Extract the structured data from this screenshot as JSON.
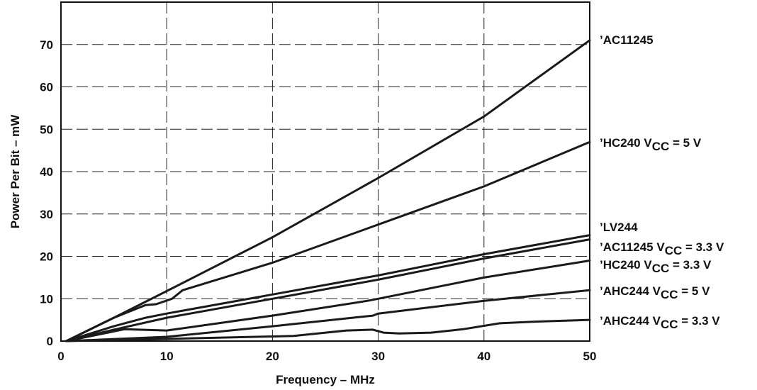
{
  "chart_data": {
    "type": "line",
    "xlabel": "Frequency – MHz",
    "ylabel": "Power Per Bit – mW",
    "xlim": [
      0,
      50
    ],
    "ylim": [
      0,
      80
    ],
    "x_ticks": [
      0,
      10,
      20,
      30,
      40,
      50
    ],
    "y_ticks": [
      0,
      10,
      20,
      30,
      40,
      50,
      60,
      70
    ],
    "grid": true,
    "legend": "labels at right end of lines",
    "series": [
      {
        "name": "’AC11245",
        "label_main": "’AC11245",
        "label_sub": "",
        "label_tail": "",
        "x": [
          0.5,
          5,
          10,
          20,
          30,
          40,
          50
        ],
        "y": [
          0,
          5.5,
          11.8,
          24.5,
          38.5,
          53,
          71
        ]
      },
      {
        "name": "’HC240 VCC = 5 V",
        "label_main": "’HC240 V",
        "label_sub": "CC",
        "label_tail": " = 5 V",
        "x": [
          0.5,
          5,
          8,
          9,
          10.5,
          11.5,
          20,
          30,
          40,
          50
        ],
        "y": [
          0,
          5.5,
          8.5,
          8.7,
          10,
          12,
          18.5,
          27.5,
          36.5,
          47
        ]
      },
      {
        "name": "’LV244",
        "label_main": "’LV244",
        "label_sub": "",
        "label_tail": "",
        "x": [
          0.5,
          5,
          8,
          10,
          20,
          30,
          40,
          50
        ],
        "y": [
          0,
          3.5,
          5.5,
          6.5,
          11,
          15.5,
          20.5,
          25
        ]
      },
      {
        "name": "’AC11245 VCC = 3.3 V",
        "label_main": "’AC11245 V",
        "label_sub": "CC",
        "label_tail": " = 3.3 V",
        "x": [
          0.5,
          5,
          10,
          20,
          30,
          40,
          50
        ],
        "y": [
          0,
          2.7,
          5.5,
          10,
          14.5,
          19.5,
          24
        ]
      },
      {
        "name": "’HC240 VCC = 3.3 V",
        "label_main": "’HC240 V",
        "label_sub": "CC",
        "label_tail": " = 3.3 V",
        "x": [
          0.5,
          6,
          10,
          20,
          29,
          30,
          40,
          50
        ],
        "y": [
          0,
          2.8,
          2.5,
          6,
          9.5,
          10,
          15,
          19
        ]
      },
      {
        "name": "’AHC244 VCC = 5 V",
        "label_main": "’AHC244 V",
        "label_sub": "CC",
        "label_tail": " = 5 V",
        "x": [
          0.5,
          10,
          20,
          29.5,
          30,
          40,
          50
        ],
        "y": [
          0,
          1,
          3.5,
          6,
          6.5,
          9.5,
          12
        ]
      },
      {
        "name": "’AHC244 VCC = 3.3 V",
        "label_main": "’AHC244 V",
        "label_sub": "CC",
        "label_tail": " = 3.3 V",
        "x": [
          0.5,
          10,
          22,
          27,
          29.5,
          30.5,
          32,
          35,
          38,
          41.5,
          45,
          50
        ],
        "y": [
          0,
          0.5,
          1.2,
          2.5,
          2.7,
          2,
          1.8,
          2,
          2.8,
          4.2,
          4.6,
          5
        ]
      }
    ]
  }
}
